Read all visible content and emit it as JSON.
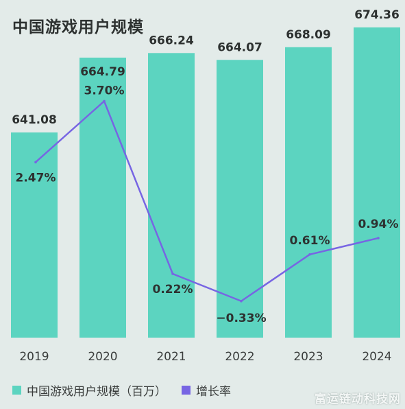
{
  "colors": {
    "bar": "#5cd4c0",
    "line": "#7765e3",
    "text": "#2d3130",
    "background": "#e3ebe9"
  },
  "watermark": "富运链动科技网",
  "chart_data": {
    "type": "bar",
    "title": "中国游戏用户规模",
    "categories": [
      "2019",
      "2020",
      "2021",
      "2022",
      "2023",
      "2024"
    ],
    "series": [
      {
        "name": "中国游戏用户规模（百万）",
        "type": "bar",
        "values": [
          641.08,
          664.79,
          666.24,
          664.07,
          668.09,
          674.36
        ],
        "labels": [
          "641.08",
          "664.79",
          "666.24",
          "664.07",
          "668.09",
          "674.36"
        ]
      },
      {
        "name": "增长率",
        "type": "line",
        "values": [
          2.47,
          3.7,
          0.22,
          -0.33,
          0.61,
          0.94
        ],
        "labels": [
          "2.47%",
          "3.70%",
          "0.22%",
          "−0.33%",
          "0.61%",
          "0.94%"
        ]
      }
    ],
    "grid": false,
    "legend_position": "bottom-left"
  }
}
